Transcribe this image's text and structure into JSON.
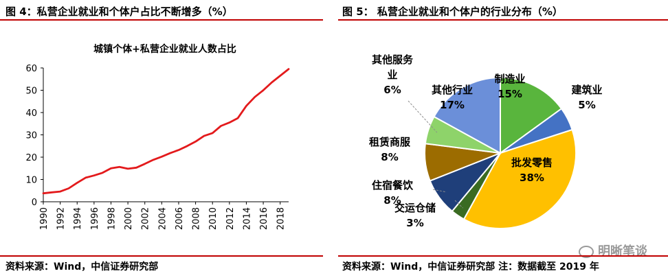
{
  "left": {
    "title": "图 4：私营企业就业和个体户占比不断增多（%）",
    "source": "资料来源：Wind，中信证券研究部"
  },
  "right": {
    "title": "图 5：   私营企业就业和个体户的行业分布（%）",
    "source": "资料来源：Wind，中信证券研究部  注：数据截至 2019 年"
  },
  "watermark": {
    "text": "明晰笔谈",
    "icon": "wechat-icon"
  },
  "colors": {
    "accent_rule": "#c00000",
    "line": "#e31a1c"
  },
  "chart_data": [
    {
      "type": "line",
      "title": "城镇个体+私营企业就业人数占比",
      "xlabel": "",
      "ylabel": "",
      "ylim": [
        0,
        60
      ],
      "yticks": [
        0,
        10,
        20,
        30,
        40,
        50,
        60
      ],
      "xticks": [
        1990,
        1992,
        1994,
        1996,
        1998,
        2000,
        2002,
        2004,
        2006,
        2008,
        2010,
        2012,
        2014,
        2016,
        2018
      ],
      "grid": false,
      "series": [
        {
          "color": "#e31a1c",
          "x": [
            1990,
            1991,
            1992,
            1993,
            1994,
            1995,
            1996,
            1997,
            1998,
            1999,
            2000,
            2001,
            2002,
            2003,
            2004,
            2005,
            2006,
            2007,
            2008,
            2009,
            2010,
            2011,
            2012,
            2013,
            2014,
            2015,
            2016,
            2017,
            2018,
            2019
          ],
          "values": [
            3.8,
            4.2,
            4.6,
            6.0,
            8.5,
            10.8,
            11.8,
            13.0,
            15.0,
            15.6,
            14.8,
            15.3,
            17.0,
            18.8,
            20.2,
            21.8,
            23.2,
            25.0,
            27.0,
            29.5,
            30.8,
            34.0,
            35.5,
            37.5,
            43.0,
            47.0,
            50.0,
            53.5,
            56.5,
            59.5
          ]
        }
      ]
    },
    {
      "type": "pie",
      "legend": "none",
      "slices": [
        {
          "label": "制造业",
          "value": 15,
          "color": "#59b53d"
        },
        {
          "label": "建筑业",
          "value": 5,
          "color": "#4472c4"
        },
        {
          "label": "批发零售",
          "value": 38,
          "color": "#ffc000"
        },
        {
          "label": "交运仓储",
          "value": 3,
          "color": "#3a6b22"
        },
        {
          "label": "住宿餐饮",
          "value": 8,
          "color": "#1f3f7a"
        },
        {
          "label": "租赁商服",
          "value": 8,
          "color": "#9c6c00"
        },
        {
          "label": "其他服务业",
          "value": 6,
          "color": "#8ed36a"
        },
        {
          "label": "其他行业",
          "value": 17,
          "color": "#6b8fd9"
        }
      ]
    }
  ]
}
